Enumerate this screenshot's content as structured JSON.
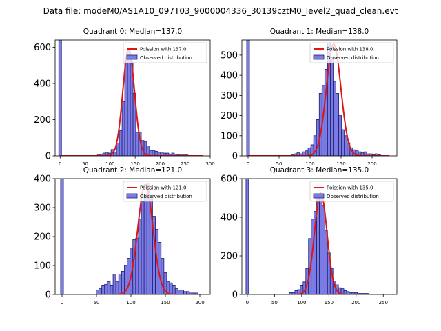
{
  "figure_title": "Data file: modeM0/AS1A10_097T03_9000004336_30139cztM0_level2_quad_clean.evt",
  "chart_data": [
    {
      "type": "bar",
      "title": "Quadrant 0: Median=137.0",
      "xlabel": "",
      "ylabel": "",
      "xlim": [
        -10,
        300
      ],
      "ylim": [
        0,
        640
      ],
      "xticks": [
        0,
        50,
        100,
        150,
        200,
        250,
        300
      ],
      "yticks": [
        0,
        200,
        400,
        600
      ],
      "bin_width": 5.5,
      "zero_bin": {
        "x": 0,
        "value": 640
      },
      "bins": [
        {
          "x": 77,
          "value": 5
        },
        {
          "x": 82.5,
          "value": 10
        },
        {
          "x": 88,
          "value": 15
        },
        {
          "x": 93.5,
          "value": 20
        },
        {
          "x": 99,
          "value": 15
        },
        {
          "x": 104.5,
          "value": 35
        },
        {
          "x": 110,
          "value": 20
        },
        {
          "x": 115.5,
          "value": 70
        },
        {
          "x": 121,
          "value": 140
        },
        {
          "x": 126.5,
          "value": 300
        },
        {
          "x": 132,
          "value": 530
        },
        {
          "x": 137.5,
          "value": 580
        },
        {
          "x": 143,
          "value": 520
        },
        {
          "x": 148.5,
          "value": 345
        },
        {
          "x": 154,
          "value": 130
        },
        {
          "x": 159.5,
          "value": 130
        },
        {
          "x": 165,
          "value": 85
        },
        {
          "x": 170.5,
          "value": 80
        },
        {
          "x": 176,
          "value": 55
        },
        {
          "x": 181.5,
          "value": 30
        },
        {
          "x": 187,
          "value": 30
        },
        {
          "x": 192.5,
          "value": 25
        },
        {
          "x": 198,
          "value": 20
        },
        {
          "x": 203.5,
          "value": 20
        },
        {
          "x": 209,
          "value": 15
        },
        {
          "x": 214.5,
          "value": 15
        },
        {
          "x": 220,
          "value": 10
        },
        {
          "x": 225.5,
          "value": 15
        },
        {
          "x": 231,
          "value": 10
        },
        {
          "x": 236.5,
          "value": 5
        },
        {
          "x": 242,
          "value": 10
        },
        {
          "x": 247.5,
          "value": 5
        },
        {
          "x": 253,
          "value": 5
        }
      ],
      "poisson": {
        "label": "Poission with 137.0",
        "mean": 137.0,
        "peak": 590,
        "x_range": [
          0,
          285
        ]
      },
      "legend": {
        "placement": "top-right",
        "entries": [
          "Poission with 137.0",
          "Observed distribution"
        ]
      }
    },
    {
      "type": "bar",
      "title": "Quadrant 1: Median=138.0",
      "xlabel": "",
      "ylabel": "",
      "xlim": [
        -10,
        240
      ],
      "ylim": [
        0,
        575
      ],
      "xticks": [
        0,
        50,
        100,
        150,
        200
      ],
      "yticks": [
        0,
        100,
        200,
        300,
        400,
        500
      ],
      "bin_width": 4.5,
      "zero_bin": {
        "x": 0,
        "value": 575
      },
      "bins": [
        {
          "x": 72,
          "value": 5
        },
        {
          "x": 76.5,
          "value": 10
        },
        {
          "x": 81,
          "value": 15
        },
        {
          "x": 85.5,
          "value": 10
        },
        {
          "x": 90,
          "value": 20
        },
        {
          "x": 94.5,
          "value": 25
        },
        {
          "x": 99,
          "value": 40
        },
        {
          "x": 103.5,
          "value": 55
        },
        {
          "x": 108,
          "value": 100
        },
        {
          "x": 112.5,
          "value": 180
        },
        {
          "x": 117,
          "value": 310
        },
        {
          "x": 121.5,
          "value": 350
        },
        {
          "x": 126,
          "value": 430
        },
        {
          "x": 130.5,
          "value": 560
        },
        {
          "x": 135,
          "value": 490
        },
        {
          "x": 139.5,
          "value": 370
        },
        {
          "x": 144,
          "value": 310
        },
        {
          "x": 148.5,
          "value": 200
        },
        {
          "x": 153,
          "value": 130
        },
        {
          "x": 157.5,
          "value": 100
        },
        {
          "x": 162,
          "value": 65
        },
        {
          "x": 166.5,
          "value": 40
        },
        {
          "x": 171,
          "value": 30
        },
        {
          "x": 175.5,
          "value": 25
        },
        {
          "x": 180,
          "value": 20
        },
        {
          "x": 184.5,
          "value": 15
        },
        {
          "x": 189,
          "value": 20
        },
        {
          "x": 193.5,
          "value": 10
        },
        {
          "x": 198,
          "value": 10
        },
        {
          "x": 202.5,
          "value": 5
        },
        {
          "x": 207,
          "value": 10
        },
        {
          "x": 211.5,
          "value": 5
        }
      ],
      "poisson": {
        "label": "Poission with 138.0",
        "mean": 138.0,
        "peak": 555,
        "x_range": [
          0,
          228
        ]
      },
      "legend": {
        "placement": "top-right",
        "entries": [
          "Poission with 138.0",
          "Observed distribution"
        ]
      }
    },
    {
      "type": "bar",
      "title": "Quadrant 2: Median=121.0",
      "xlabel": "",
      "ylabel": "",
      "xlim": [
        -10,
        215
      ],
      "ylim": [
        0,
        400
      ],
      "xticks": [
        0,
        50,
        100,
        150,
        200
      ],
      "yticks": [
        0,
        100,
        200,
        300,
        400
      ],
      "bin_width": 4.1,
      "zero_bin": {
        "x": 0,
        "value": 400
      },
      "bins": [
        {
          "x": 51.5,
          "value": 15
        },
        {
          "x": 55.6,
          "value": 20
        },
        {
          "x": 59.7,
          "value": 30
        },
        {
          "x": 63.8,
          "value": 35
        },
        {
          "x": 67.9,
          "value": 45
        },
        {
          "x": 72,
          "value": 30
        },
        {
          "x": 76.1,
          "value": 70
        },
        {
          "x": 80.2,
          "value": 45
        },
        {
          "x": 84.3,
          "value": 70
        },
        {
          "x": 88.4,
          "value": 80
        },
        {
          "x": 92.5,
          "value": 100
        },
        {
          "x": 96.6,
          "value": 125
        },
        {
          "x": 100.7,
          "value": 160
        },
        {
          "x": 104.8,
          "value": 190
        },
        {
          "x": 108.9,
          "value": 195
        },
        {
          "x": 113,
          "value": 260
        },
        {
          "x": 117.1,
          "value": 320
        },
        {
          "x": 121.2,
          "value": 345
        },
        {
          "x": 125.3,
          "value": 385
        },
        {
          "x": 129.4,
          "value": 335
        },
        {
          "x": 133.5,
          "value": 270
        },
        {
          "x": 137.6,
          "value": 225
        },
        {
          "x": 141.7,
          "value": 180
        },
        {
          "x": 145.8,
          "value": 125
        },
        {
          "x": 149.9,
          "value": 75
        },
        {
          "x": 154,
          "value": 45
        },
        {
          "x": 158.1,
          "value": 40
        },
        {
          "x": 162.2,
          "value": 30
        },
        {
          "x": 166.3,
          "value": 20
        },
        {
          "x": 170.4,
          "value": 15
        },
        {
          "x": 174.5,
          "value": 15
        },
        {
          "x": 178.6,
          "value": 10
        },
        {
          "x": 182.7,
          "value": 10
        },
        {
          "x": 186.8,
          "value": 5
        },
        {
          "x": 190.9,
          "value": 5
        },
        {
          "x": 195,
          "value": 5
        }
      ],
      "poisson": {
        "label": "Poission with 121.0",
        "mean": 121.0,
        "peak": 380,
        "x_range": [
          0,
          205
        ]
      },
      "legend": {
        "placement": "top-right",
        "entries": [
          "Poission with 121.0",
          "Observed distribution"
        ]
      }
    },
    {
      "type": "bar",
      "title": "Quadrant 3: Median=135.0",
      "xlabel": "",
      "ylabel": "",
      "xlim": [
        -10,
        275
      ],
      "ylim": [
        0,
        600
      ],
      "xticks": [
        0,
        50,
        100,
        150,
        200,
        250
      ],
      "yticks": [
        0,
        200,
        400,
        600
      ],
      "bin_width": 5.0,
      "zero_bin": {
        "x": 0,
        "value": 600
      },
      "bins": [
        {
          "x": 80,
          "value": 10
        },
        {
          "x": 85,
          "value": 10
        },
        {
          "x": 90,
          "value": 20
        },
        {
          "x": 95,
          "value": 25
        },
        {
          "x": 100,
          "value": 45
        },
        {
          "x": 105,
          "value": 65
        },
        {
          "x": 110,
          "value": 135
        },
        {
          "x": 115,
          "value": 290
        },
        {
          "x": 120,
          "value": 390
        },
        {
          "x": 125,
          "value": 430
        },
        {
          "x": 130,
          "value": 520
        },
        {
          "x": 135,
          "value": 510
        },
        {
          "x": 140,
          "value": 460
        },
        {
          "x": 145,
          "value": 330
        },
        {
          "x": 150,
          "value": 215
        },
        {
          "x": 155,
          "value": 135
        },
        {
          "x": 160,
          "value": 70
        },
        {
          "x": 165,
          "value": 50
        },
        {
          "x": 170,
          "value": 35
        },
        {
          "x": 175,
          "value": 30
        },
        {
          "x": 180,
          "value": 20
        },
        {
          "x": 185,
          "value": 15
        },
        {
          "x": 190,
          "value": 10
        },
        {
          "x": 195,
          "value": 10
        },
        {
          "x": 200,
          "value": 10
        },
        {
          "x": 205,
          "value": 5
        },
        {
          "x": 210,
          "value": 5
        },
        {
          "x": 215,
          "value": 5
        },
        {
          "x": 220,
          "value": 5
        }
      ],
      "poisson": {
        "label": "Poission with 135.0",
        "mean": 135.0,
        "peak": 525,
        "x_range": [
          0,
          268
        ]
      },
      "legend": {
        "placement": "top-right",
        "entries": [
          "Poission with 135.0",
          "Observed distribution"
        ]
      }
    }
  ],
  "colors": {
    "bar_fill": "#7b7be6",
    "bar_edge": "#1f1f6b",
    "poisson_line": "#e11414",
    "axis": "#000000",
    "background": "#ffffff"
  }
}
